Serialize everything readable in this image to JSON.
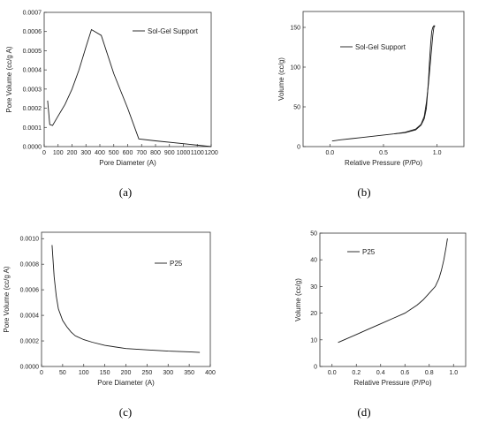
{
  "chart_data": [
    {
      "type": "line",
      "panel": "(a)",
      "xlabel": "Pore Diameter (A)",
      "ylabel": "Pore Volume (cc/g A)",
      "xlim": [
        0,
        1200
      ],
      "ylim": [
        0,
        0.0007
      ],
      "xticks": [
        "0",
        "100",
        "200",
        "300",
        "400",
        "500",
        "600",
        "700",
        "800",
        "900",
        "1000",
        "1100",
        "1200"
      ],
      "yticks": [
        "0.0000",
        "0.0001",
        "0.0002",
        "0.0003",
        "0.0004",
        "0.0005",
        "0.0006",
        "0.0007"
      ],
      "legend_placement": "top-right",
      "series": [
        {
          "name": "Sol-Gel Support",
          "x": [
            25,
            40,
            60,
            100,
            150,
            200,
            250,
            300,
            340,
            410,
            500,
            600,
            680,
            800,
            1000,
            1200
          ],
          "y": [
            0.00024,
            0.000115,
            0.00011,
            0.00016,
            0.00022,
            0.0003,
            0.0004,
            0.00052,
            0.00061,
            0.00058,
            0.00038,
            0.0002,
            4e-05,
            3e-05,
            1.5e-05,
            0.0
          ]
        }
      ]
    },
    {
      "type": "line",
      "panel": "(b)",
      "xlabel": "Relative Pressure (P/Po)",
      "ylabel": "Volume (cc/g)",
      "xlim": [
        -0.25,
        1.25
      ],
      "ylim": [
        0,
        170
      ],
      "xticks": [
        "0.0",
        "0.5",
        "1.0"
      ],
      "yticks": [
        "0",
        "50",
        "100",
        "150"
      ],
      "legend_placement": "top-left",
      "series": [
        {
          "name": "Sol-Gel Support",
          "x": [
            0.02,
            0.1,
            0.2,
            0.3,
            0.4,
            0.5,
            0.6,
            0.7,
            0.8,
            0.85,
            0.88,
            0.9,
            0.92,
            0.94,
            0.96,
            0.97,
            0.98
          ],
          "y": [
            7,
            8.5,
            10,
            11.5,
            13,
            14.5,
            16,
            18,
            22,
            28,
            38,
            55,
            80,
            110,
            140,
            150,
            152
          ]
        },
        {
          "name": "",
          "x": [
            0.98,
            0.97,
            0.96,
            0.95,
            0.94,
            0.93,
            0.92,
            0.91,
            0.9,
            0.88,
            0.85,
            0.8,
            0.7,
            0.6
          ],
          "y": [
            152,
            152,
            150,
            145,
            130,
            110,
            85,
            65,
            48,
            35,
            27,
            21,
            17.5,
            16
          ]
        }
      ]
    },
    {
      "type": "line",
      "panel": "(c)",
      "xlabel": "Pore Diameter (A)",
      "ylabel": "Pore Volume (cc/g A)",
      "xlim": [
        0,
        400
      ],
      "ylim": [
        0,
        0.00105
      ],
      "xticks": [
        "0",
        "50",
        "100",
        "150",
        "200",
        "250",
        "300",
        "350",
        "400"
      ],
      "yticks": [
        "0.0000",
        "0.0002",
        "0.0004",
        "0.0006",
        "0.0008",
        "0.0010"
      ],
      "legend_placement": "top-right",
      "series": [
        {
          "name": "P25",
          "x": [
            25,
            30,
            35,
            40,
            50,
            60,
            70,
            80,
            100,
            120,
            150,
            200,
            250,
            300,
            350,
            375
          ],
          "y": [
            0.00095,
            0.0007,
            0.00055,
            0.00045,
            0.00036,
            0.00031,
            0.00027,
            0.00024,
            0.00021,
            0.00019,
            0.000165,
            0.00014,
            0.00013,
            0.00012,
            0.000115,
            0.00011
          ]
        }
      ]
    },
    {
      "type": "line",
      "panel": "(d)",
      "xlabel": "Relative Pressure (P/Po)",
      "ylabel": "Volume (cc/g)",
      "xlim": [
        -0.1,
        1.1
      ],
      "ylim": [
        0,
        50
      ],
      "xticks": [
        "0.0",
        "0.2",
        "0.4",
        "0.6",
        "0.8",
        "1.0"
      ],
      "yticks": [
        "0",
        "10",
        "20",
        "30",
        "40",
        "50"
      ],
      "legend_placement": "top-left",
      "series": [
        {
          "name": "P25",
          "x": [
            0.05,
            0.1,
            0.2,
            0.3,
            0.4,
            0.5,
            0.6,
            0.7,
            0.75,
            0.8,
            0.85,
            0.88,
            0.9,
            0.92,
            0.94,
            0.95
          ],
          "y": [
            9,
            10,
            12,
            14,
            16,
            18,
            20,
            23,
            25,
            27.5,
            30,
            33,
            36,
            40,
            45,
            48
          ]
        }
      ]
    }
  ],
  "captions": [
    "(a)",
    "(b)",
    "(c)",
    "(d)"
  ],
  "style": {
    "line_color": "#1a1a1a",
    "axis_color": "#333333"
  }
}
